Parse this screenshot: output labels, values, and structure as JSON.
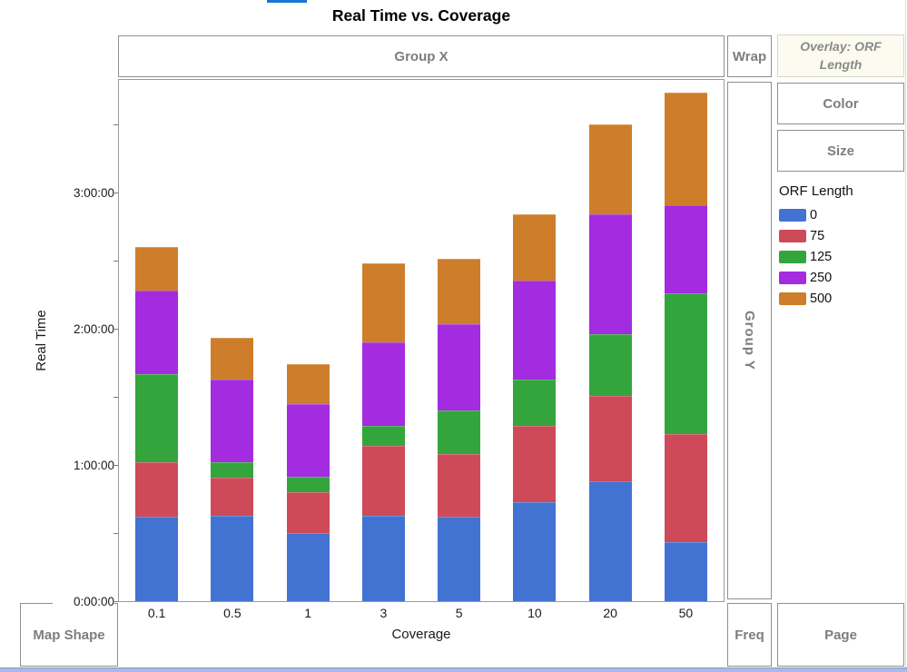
{
  "title": "Real Time vs. Coverage",
  "drop_zones": {
    "group_x": "Group X",
    "group_y": "Group Y",
    "wrap": "Wrap",
    "overlay": "Overlay: ORF Length",
    "color": "Color",
    "size": "Size",
    "map_shape": "Map Shape",
    "freq": "Freq",
    "page": "Page"
  },
  "legend": {
    "title": "ORF Length",
    "entries": [
      "0",
      "75",
      "125",
      "250",
      "500"
    ]
  },
  "chart_data": {
    "type": "bar",
    "stacked": true,
    "title": "Real Time vs. Coverage",
    "xlabel": "Coverage",
    "ylabel": "Real Time",
    "y_unit": "hours",
    "categories": [
      "0.1",
      "0.5",
      "1",
      "3",
      "5",
      "10",
      "20",
      "50"
    ],
    "series": [
      {
        "name": "0",
        "color": "#4273D2",
        "values": [
          0.62,
          0.625,
          0.5,
          0.625,
          0.62,
          0.725,
          0.88,
          0.435
        ]
      },
      {
        "name": "75",
        "color": "#CE4A59",
        "values": [
          0.4,
          0.28,
          0.3,
          0.515,
          0.46,
          0.565,
          0.63,
          0.79
        ]
      },
      {
        "name": "125",
        "color": "#33A53C",
        "values": [
          0.645,
          0.115,
          0.115,
          0.15,
          0.32,
          0.335,
          0.455,
          1.04
        ]
      },
      {
        "name": "250",
        "color": "#A32BE0",
        "values": [
          0.615,
          0.605,
          0.53,
          0.615,
          0.635,
          0.73,
          0.875,
          0.645
        ]
      },
      {
        "name": "500",
        "color": "#CE7E2B",
        "values": [
          0.32,
          0.31,
          0.3,
          0.58,
          0.48,
          0.485,
          0.665,
          0.83
        ]
      }
    ],
    "stack_totals_hours": [
      2.6,
      1.935,
      1.745,
      2.485,
      2.515,
      2.84,
      3.505,
      3.74
    ],
    "y_ticks": [
      {
        "value": 0,
        "label": "0:00:00"
      },
      {
        "value": 1,
        "label": "1:00:00"
      },
      {
        "value": 2,
        "label": "2:00:00"
      },
      {
        "value": 3,
        "label": "3:00:00"
      }
    ],
    "y_minor_ticks": [
      0.5,
      1.5,
      2.5,
      3.5
    ],
    "ylim": [
      0,
      3.83
    ],
    "grid": false,
    "legend_title": "ORF Length",
    "legend_position": "right"
  },
  "colors": {
    "accent_blue": "#1677D2",
    "zone_border": "#8F8F8F",
    "zone_text": "#7D7D7D",
    "overlay_bg": "#FCFBF0",
    "overlay_border": "#D6D6C6",
    "plot_border": "#9A9A9A",
    "bottom_strip": "#A9B9E8"
  }
}
